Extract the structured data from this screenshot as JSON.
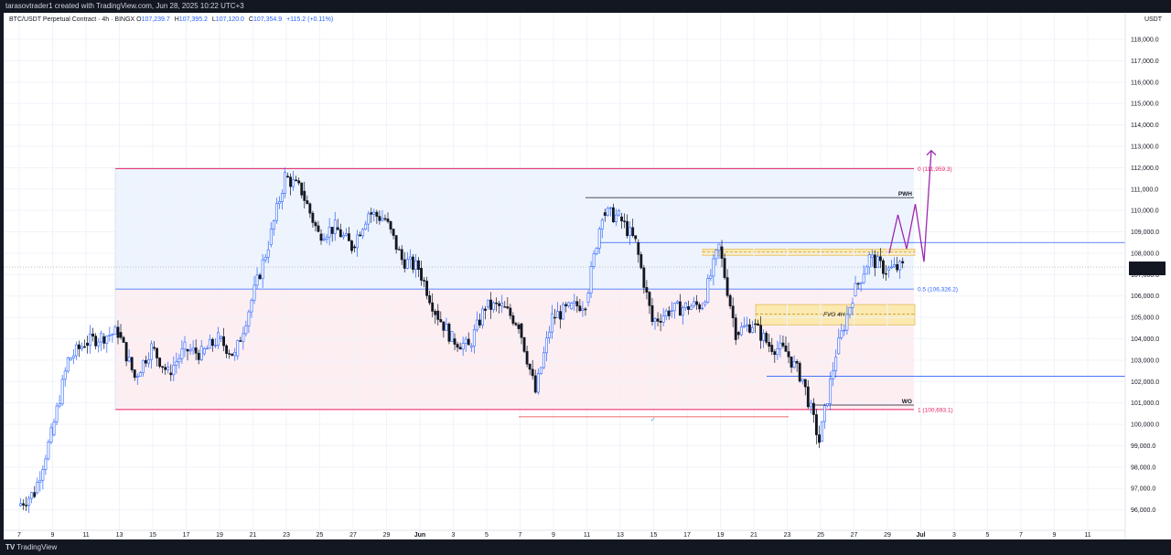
{
  "watermark": "tarasovtrader1 created with TradingView.com, Jun 28, 2025 10:22 UTC+3",
  "header": {
    "symbol": "BTC/USDT Perpetual Contract · 4h · BINGX",
    "open_label": "O",
    "open": "107,239.7",
    "high_label": "H",
    "high": "107,395.2",
    "low_label": "L",
    "low": "107,120.0",
    "close_label": "C",
    "close": "107,354.9",
    "change": "+115.2 (+0.11%)"
  },
  "currency": "USDT",
  "price_badge": {
    "price": "107,354.9",
    "countdown": "37:38"
  },
  "footer": {
    "brand": "TradingView",
    "logo_glyph": "TV"
  },
  "annotations": {
    "fib_0": "0 (111,959.3)",
    "fib_05": "0.5 (106,326.2)",
    "fib_1": "1 (100,693.1)",
    "pwh": "PWH",
    "wo": "WO",
    "fvg": "FVG 4H",
    "check": "✓"
  },
  "colors": {
    "up": "#2962ff",
    "down": "#131722",
    "fib_line": "#e91e63",
    "fib_mid": "#2962ff",
    "zone_blue": "#eef4fd",
    "zone_pink": "#fdeef2",
    "fvg": "#fbe9b0",
    "projection": "#9c27b0"
  },
  "chart_data": {
    "type": "candlestick",
    "title": "BTC/USDT Perpetual Contract · 4h · BINGX",
    "y_range": [
      95300,
      118900
    ],
    "y_ticks": [
      96000,
      97000,
      98000,
      99000,
      100000,
      101000,
      102000,
      103000,
      104000,
      105000,
      106000,
      107000,
      108000,
      109000,
      110000,
      111000,
      112000,
      113000,
      114000,
      115000,
      116000,
      117000,
      118000
    ],
    "x_ticks": [
      "7",
      "9",
      "11",
      "13",
      "15",
      "17",
      "19",
      "21",
      "23",
      "25",
      "27",
      "29",
      "Jun",
      "3",
      "5",
      "7",
      "9",
      "11",
      "13",
      "15",
      "17",
      "19",
      "21",
      "23",
      "25",
      "27",
      "29",
      "Jul",
      "3",
      "5",
      "7",
      "9",
      "11"
    ],
    "levels": [
      {
        "name": "fib 0",
        "value": 111959.3
      },
      {
        "name": "PWH",
        "value": 110600
      },
      {
        "name": "range high",
        "value": 108500
      },
      {
        "name": "fib 0.5",
        "value": 106326.2
      },
      {
        "name": "range low",
        "value": 102250
      },
      {
        "name": "WO",
        "value": 100900
      },
      {
        "name": "fib 1",
        "value": 100693.1
      }
    ],
    "daily_closes": [
      [
        "May 7",
        96800
      ],
      [
        "May 8",
        99500
      ],
      [
        "May 9",
        103000
      ],
      [
        "May 10",
        103800
      ],
      [
        "May 11",
        104100
      ],
      [
        "May 12",
        104300
      ],
      [
        "May 13",
        102200
      ],
      [
        "May 14",
        103600
      ],
      [
        "May 15",
        102400
      ],
      [
        "May 16",
        103500
      ],
      [
        "May 17",
        103300
      ],
      [
        "May 18",
        104000
      ],
      [
        "May 19",
        103200
      ],
      [
        "May 20",
        105800
      ],
      [
        "May 21",
        108400
      ],
      [
        "May 22",
        111600
      ],
      [
        "May 23",
        110900
      ],
      [
        "May 24",
        108900
      ],
      [
        "May 25",
        109200
      ],
      [
        "May 26",
        108300
      ],
      [
        "May 27",
        109900
      ],
      [
        "May 28",
        109600
      ],
      [
        "May 29",
        107700
      ],
      [
        "May 30",
        107300
      ],
      [
        "May 31",
        105300
      ],
      [
        "Jun 1",
        104000
      ],
      [
        "Jun 2",
        103600
      ],
      [
        "Jun 3",
        105500
      ],
      [
        "Jun 4",
        105500
      ],
      [
        "Jun 5",
        104700
      ],
      [
        "Jun 6",
        101500
      ],
      [
        "Jun 7",
        105000
      ],
      [
        "Jun 8",
        105400
      ],
      [
        "Jun 9",
        105700
      ],
      [
        "Jun 10",
        109900
      ],
      [
        "Jun 11",
        109700
      ],
      [
        "Jun 12",
        108500
      ],
      [
        "Jun 13",
        104800
      ],
      [
        "Jun 14",
        105300
      ],
      [
        "Jun 15",
        105500
      ],
      [
        "Jun 16",
        105600
      ],
      [
        "Jun 17",
        108300
      ],
      [
        "Jun 18",
        104300
      ],
      [
        "Jun 19",
        104700
      ],
      [
        "Jun 20",
        103700
      ],
      [
        "Jun 21",
        103400
      ],
      [
        "Jun 22",
        102100
      ],
      [
        "Jun 23",
        99200
      ],
      [
        "Jun 24",
        103300
      ],
      [
        "Jun 25",
        106000
      ],
      [
        "Jun 26",
        107800
      ],
      [
        "Jun 27",
        107200
      ],
      [
        "Jun 28",
        107355
      ]
    ],
    "projection_path": [
      [
        108000
      ],
      [
        109800
      ],
      [
        108200
      ],
      [
        110300
      ],
      [
        107600
      ],
      [
        112800
      ]
    ]
  }
}
